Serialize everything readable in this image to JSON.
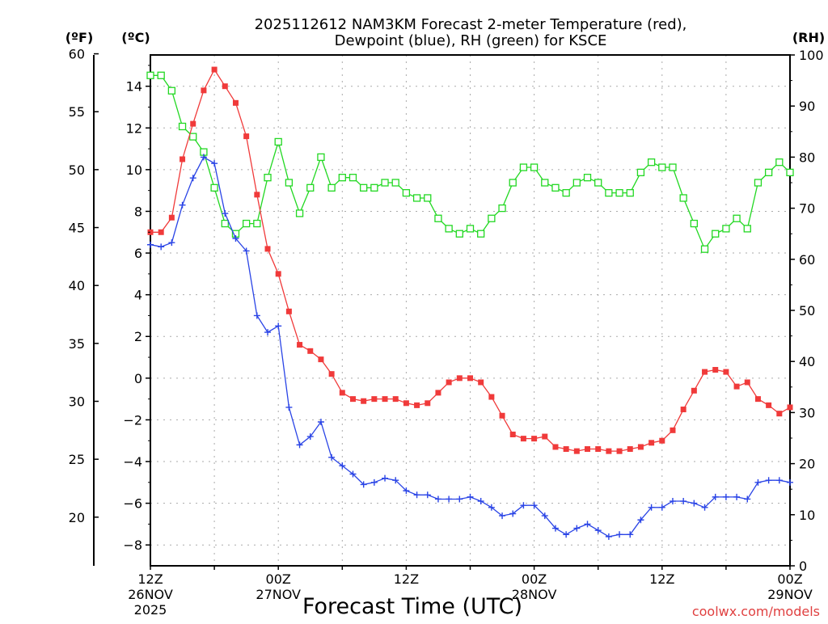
{
  "chart_data": {
    "type": "line",
    "title_lines": [
      "2025112612 NAM3KM Forecast 2-meter Temperature (red),",
      "Dewpoint (blue), RH (green) for KSCE"
    ],
    "xlabel": "Forecast Time (UTC)",
    "watermark": "coolwx.com/models",
    "unit_labels": {
      "fahrenheit": "(ºF)",
      "celsius": "(ºC)",
      "rh": "(RH)"
    },
    "x_hours_range": [
      0,
      60
    ],
    "x_ticks": [
      {
        "hour": 0,
        "label": "12Z",
        "date": "26NOV",
        "year": "2025"
      },
      {
        "hour": 12,
        "label": "00Z",
        "date": "27NOV"
      },
      {
        "hour": 24,
        "label": "12Z"
      },
      {
        "hour": 36,
        "label": "00Z",
        "date": "28NOV"
      },
      {
        "hour": 48,
        "label": "12Z"
      },
      {
        "hour": 60,
        "label": "00Z",
        "date": "29NOV"
      }
    ],
    "celsius_axis": {
      "ylim": [
        -9.0,
        15.5
      ],
      "ticks": [
        "14",
        "12",
        "10",
        "8",
        "6",
        "4",
        "2",
        "0",
        "−2",
        "−4",
        "−6",
        "−8"
      ],
      "tick_values": [
        14,
        12,
        10,
        8,
        6,
        4,
        2,
        0,
        -2,
        -4,
        -6,
        -8
      ]
    },
    "fahrenheit_axis": {
      "ticks": [
        "60",
        "55",
        "50",
        "45",
        "40",
        "35",
        "30",
        "25",
        "20"
      ],
      "tick_values": [
        60,
        55,
        50,
        45,
        40,
        35,
        30,
        25,
        20
      ]
    },
    "rh_axis": {
      "ylim": [
        0,
        100
      ],
      "ticks": [
        "100",
        "90",
        "80",
        "70",
        "60",
        "50",
        "40",
        "30",
        "20",
        "10",
        "0"
      ],
      "tick_values": [
        100,
        90,
        80,
        70,
        60,
        50,
        40,
        30,
        20,
        10,
        0
      ]
    },
    "colors": {
      "temperature": "#f03a3a",
      "dewpoint": "#2a44e6",
      "rh": "#22d822",
      "grid": "#aaaaaa",
      "watermark": "#e04040"
    },
    "series": [
      {
        "name": "Temperature (C)",
        "axis": "celsius",
        "marker": "filled-square",
        "values": [
          7.0,
          7.0,
          7.7,
          10.5,
          12.2,
          13.8,
          14.8,
          14.0,
          13.2,
          11.6,
          8.8,
          6.2,
          5.0,
          3.2,
          1.6,
          1.3,
          0.9,
          0.2,
          -0.7,
          -1.0,
          -1.1,
          -1.0,
          -1.0,
          -1.0,
          -1.2,
          -1.3,
          -1.2,
          -0.7,
          -0.2,
          0.0,
          0.0,
          -0.2,
          -0.9,
          -1.8,
          -2.7,
          -2.9,
          -2.9,
          -2.8,
          -3.3,
          -3.4,
          -3.5,
          -3.4,
          -3.4,
          -3.5,
          -3.5,
          -3.4,
          -3.3,
          -3.1,
          -3.0,
          -2.5,
          -1.5,
          -0.6,
          0.3,
          0.4,
          0.3,
          -0.4,
          -0.2,
          -1.0,
          -1.3,
          -1.7,
          -1.4
        ]
      },
      {
        "name": "Dewpoint (C)",
        "axis": "celsius",
        "marker": "plus",
        "values": [
          6.4,
          6.3,
          6.5,
          8.3,
          9.6,
          10.6,
          10.3,
          7.9,
          6.7,
          6.1,
          3.0,
          2.2,
          2.5,
          -1.4,
          -3.2,
          -2.8,
          -2.1,
          -3.8,
          -4.2,
          -4.6,
          -5.1,
          -5.0,
          -4.8,
          -4.9,
          -5.4,
          -5.6,
          -5.6,
          -5.8,
          -5.8,
          -5.8,
          -5.7,
          -5.9,
          -6.2,
          -6.6,
          -6.5,
          -6.1,
          -6.1,
          -6.6,
          -7.2,
          -7.5,
          -7.2,
          -7.0,
          -7.3,
          -7.6,
          -7.5,
          -7.5,
          -6.8,
          -6.2,
          -6.2,
          -5.9,
          -5.9,
          -6.0,
          -6.2,
          -5.7,
          -5.7,
          -5.7,
          -5.8,
          -5.0,
          -4.9,
          -4.9,
          -5.0
        ]
      },
      {
        "name": "RH (%)",
        "axis": "rh",
        "marker": "open-square",
        "values": [
          96,
          96,
          93,
          86,
          84,
          81,
          74,
          67,
          65,
          67,
          67,
          76,
          83,
          75,
          69,
          74,
          80,
          74,
          76,
          76,
          74,
          74,
          75,
          75,
          73,
          72,
          72,
          68,
          66,
          65,
          66,
          65,
          68,
          70,
          75,
          78,
          78,
          75,
          74,
          73,
          75,
          76,
          75,
          73,
          73,
          73,
          77,
          79,
          78,
          78,
          72,
          67,
          62,
          65,
          66,
          68,
          66,
          75,
          77,
          79,
          77
        ]
      }
    ]
  }
}
